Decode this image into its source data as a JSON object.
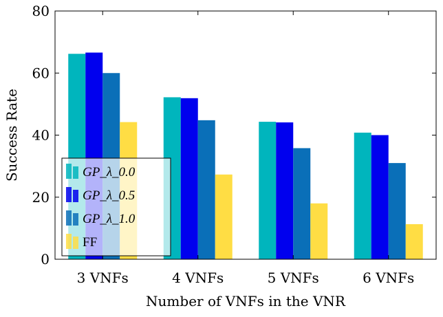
{
  "chart_data": {
    "type": "bar",
    "title": "",
    "xlabel": "Number of VNFs in the VNR",
    "ylabel": "Success Rate",
    "ylim": [
      0,
      80
    ],
    "yticks": [
      0,
      20,
      40,
      60,
      80
    ],
    "categories": [
      "3 VNFs",
      "4 VNFs",
      "5 VNFs",
      "6 VNFs"
    ],
    "series": [
      {
        "name": "GP_λ_0.0",
        "color": "#00b5bd",
        "values": [
          66.2,
          52.2,
          44.3,
          40.8
        ]
      },
      {
        "name": "GP_λ_0.5",
        "color": "#0000ee",
        "values": [
          66.6,
          51.9,
          44.1,
          40.0
        ]
      },
      {
        "name": "GP_λ_1.0",
        "color": "#0a6fb8",
        "values": [
          60.0,
          44.8,
          35.8,
          31.0
        ]
      },
      {
        "name": "FF",
        "color": "#ffdd44",
        "values": [
          44.2,
          27.3,
          18.0,
          11.3
        ]
      }
    ],
    "legend": {
      "placement": "bottom-left"
    },
    "grid": false
  }
}
